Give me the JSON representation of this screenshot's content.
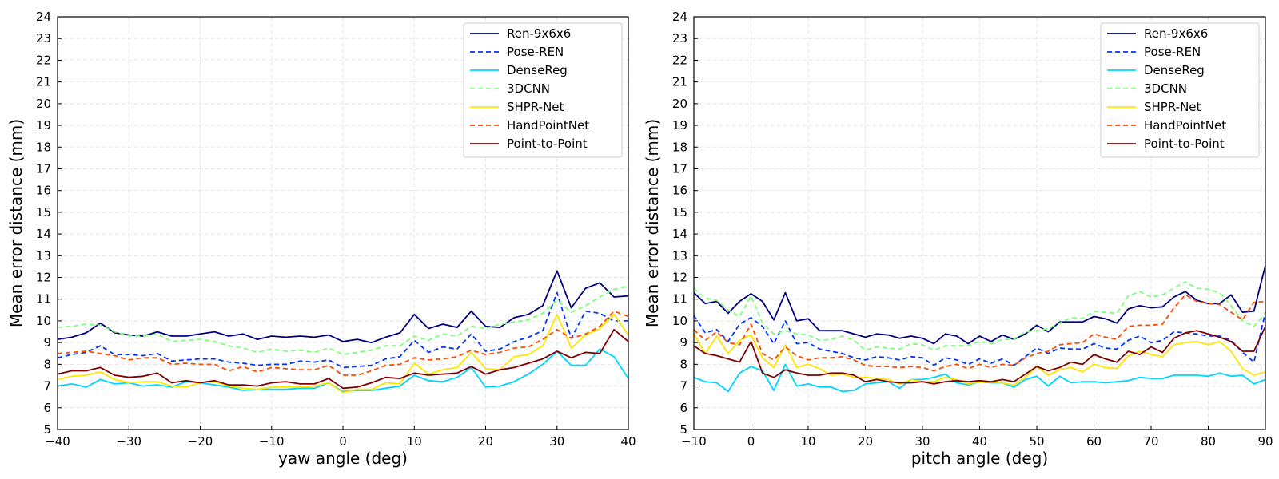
{
  "chart_data": [
    {
      "type": "line",
      "xlabel": "yaw angle (deg)",
      "ylabel": "Mean error distance (mm)",
      "xlim": [
        -40,
        40
      ],
      "ylim": [
        5,
        24
      ],
      "xticks": [
        -40,
        -30,
        -20,
        -10,
        0,
        10,
        20,
        30,
        40
      ],
      "xtick_labels": [
        "−40",
        "−30",
        "−20",
        "−10",
        "0",
        "10",
        "20",
        "30",
        "40"
      ],
      "yticks": [
        5,
        6,
        7,
        8,
        9,
        10,
        11,
        12,
        13,
        14,
        15,
        16,
        17,
        18,
        19,
        20,
        21,
        22,
        23,
        24
      ],
      "ytick_labels": [
        "5",
        "6",
        "7",
        "8",
        "9",
        "10",
        "11",
        "12",
        "13",
        "14",
        "15",
        "16",
        "17",
        "18",
        "19",
        "20",
        "21",
        "22",
        "23",
        "24"
      ],
      "grid": true,
      "legend_position": "top-right",
      "x": [
        -40,
        -38,
        -36,
        -34,
        -32,
        -30,
        -28,
        -26,
        -24,
        -22,
        -20,
        -18,
        -16,
        -14,
        -12,
        -10,
        -8,
        -6,
        -4,
        -2,
        0,
        2,
        4,
        6,
        8,
        10,
        12,
        14,
        16,
        18,
        20,
        22,
        24,
        26,
        28,
        30,
        32,
        34,
        36,
        38,
        40
      ],
      "series": [
        {
          "name": "Ren-9x6x6",
          "color": "#000080",
          "dash": "solid",
          "values": [
            9.15,
            9.25,
            9.45,
            9.9,
            9.45,
            9.35,
            9.3,
            9.5,
            9.3,
            9.3,
            9.4,
            9.5,
            9.3,
            9.4,
            9.15,
            9.3,
            9.25,
            9.3,
            9.25,
            9.35,
            9.05,
            9.15,
            9.0,
            9.25,
            9.45,
            10.3,
            9.65,
            9.85,
            9.7,
            10.45,
            9.75,
            9.7,
            10.15,
            10.3,
            10.7,
            12.3,
            10.6,
            11.5,
            11.75,
            11.1,
            11.15
          ]
        },
        {
          "name": "Pose-REN",
          "color": "#0033ff",
          "dash": "dashed",
          "values": [
            8.3,
            8.45,
            8.55,
            8.85,
            8.45,
            8.45,
            8.4,
            8.5,
            8.15,
            8.2,
            8.25,
            8.25,
            8.1,
            8.05,
            7.95,
            8.0,
            8.0,
            8.15,
            8.1,
            8.2,
            7.85,
            7.9,
            7.95,
            8.25,
            8.35,
            9.1,
            8.55,
            8.8,
            8.7,
            9.4,
            8.6,
            8.7,
            9.05,
            9.25,
            9.55,
            11.3,
            9.2,
            10.45,
            10.35,
            10.0,
            10.0
          ]
        },
        {
          "name": "DenseReg",
          "color": "#00d4ff",
          "dash": "solid",
          "values": [
            7.0,
            7.1,
            6.95,
            7.3,
            7.1,
            7.15,
            7.0,
            7.05,
            6.95,
            7.2,
            7.15,
            7.05,
            6.95,
            6.8,
            6.85,
            6.85,
            6.85,
            6.9,
            6.9,
            7.15,
            6.75,
            6.8,
            6.8,
            6.9,
            7.0,
            7.5,
            7.25,
            7.2,
            7.4,
            7.85,
            6.95,
            7.0,
            7.2,
            7.55,
            8.0,
            8.6,
            7.95,
            7.95,
            8.7,
            8.35,
            7.35
          ]
        },
        {
          "name": "3DCNN",
          "color": "#7cff79",
          "dash": "dashed",
          "values": [
            9.7,
            9.75,
            9.85,
            9.8,
            9.5,
            9.3,
            9.3,
            9.4,
            9.05,
            9.1,
            9.15,
            9.05,
            8.85,
            8.75,
            8.55,
            8.7,
            8.6,
            8.65,
            8.55,
            8.75,
            8.45,
            8.55,
            8.65,
            8.85,
            8.85,
            9.3,
            9.1,
            9.4,
            9.3,
            9.75,
            9.65,
            9.85,
            9.95,
            10.05,
            10.35,
            10.95,
            10.4,
            10.7,
            11.1,
            11.45,
            11.6
          ]
        },
        {
          "name": "SHPR-Net",
          "color": "#ffe600",
          "dash": "solid",
          "values": [
            7.3,
            7.45,
            7.5,
            7.65,
            7.3,
            7.15,
            7.2,
            7.2,
            7.0,
            6.95,
            7.15,
            7.2,
            7.0,
            6.9,
            6.85,
            6.95,
            6.95,
            6.95,
            7.0,
            7.15,
            6.7,
            6.85,
            6.85,
            7.15,
            7.1,
            8.05,
            7.55,
            7.75,
            7.85,
            8.55,
            7.8,
            7.75,
            8.35,
            8.45,
            8.85,
            10.3,
            8.75,
            9.35,
            9.65,
            10.3,
            9.35
          ]
        },
        {
          "name": "HandPointNet",
          "color": "#ff4a00",
          "dash": "dashed",
          "values": [
            8.5,
            8.55,
            8.6,
            8.5,
            8.4,
            8.2,
            8.3,
            8.3,
            8.0,
            8.05,
            8.0,
            8.0,
            7.7,
            7.9,
            7.65,
            7.85,
            7.8,
            7.75,
            7.75,
            7.95,
            7.5,
            7.5,
            7.7,
            7.95,
            8.0,
            8.3,
            8.2,
            8.25,
            8.35,
            8.65,
            8.45,
            8.55,
            8.75,
            8.8,
            9.15,
            9.6,
            9.2,
            9.4,
            9.75,
            10.45,
            10.2
          ]
        },
        {
          "name": "Point-to-Point",
          "color": "#800000",
          "dash": "solid",
          "values": [
            7.55,
            7.7,
            7.7,
            7.85,
            7.5,
            7.4,
            7.45,
            7.6,
            7.15,
            7.25,
            7.15,
            7.25,
            7.05,
            7.05,
            7.0,
            7.15,
            7.2,
            7.1,
            7.1,
            7.35,
            6.9,
            6.95,
            7.15,
            7.4,
            7.35,
            7.6,
            7.5,
            7.55,
            7.6,
            7.9,
            7.55,
            7.75,
            7.85,
            8.05,
            8.25,
            8.6,
            8.3,
            8.55,
            8.5,
            9.6,
            9.05
          ]
        }
      ]
    },
    {
      "type": "line",
      "xlabel": "pitch angle (deg)",
      "ylabel": "Mean error distance (mm)",
      "xlim": [
        -10,
        90
      ],
      "ylim": [
        5,
        24
      ],
      "xticks": [
        -10,
        0,
        10,
        20,
        30,
        40,
        50,
        60,
        70,
        80,
        90
      ],
      "xtick_labels": [
        "−10",
        "0",
        "10",
        "20",
        "30",
        "40",
        "50",
        "60",
        "70",
        "80",
        "90"
      ],
      "yticks": [
        5,
        6,
        7,
        8,
        9,
        10,
        11,
        12,
        13,
        14,
        15,
        16,
        17,
        18,
        19,
        20,
        21,
        22,
        23,
        24
      ],
      "ytick_labels": [
        "5",
        "6",
        "7",
        "8",
        "9",
        "10",
        "11",
        "12",
        "13",
        "14",
        "15",
        "16",
        "17",
        "18",
        "19",
        "20",
        "21",
        "22",
        "23",
        "24"
      ],
      "grid": true,
      "legend_position": "top-right",
      "x": [
        -10,
        -8,
        -6,
        -4,
        -2,
        0,
        2,
        4,
        6,
        8,
        10,
        12,
        14,
        16,
        18,
        20,
        22,
        24,
        26,
        28,
        30,
        32,
        34,
        36,
        38,
        40,
        42,
        44,
        46,
        48,
        50,
        52,
        54,
        56,
        58,
        60,
        62,
        64,
        66,
        68,
        70,
        72,
        74,
        76,
        78,
        80,
        82,
        84,
        86,
        88,
        90
      ],
      "series": [
        {
          "name": "Ren-9x6x6",
          "color": "#000080",
          "dash": "solid",
          "values": [
            11.3,
            10.8,
            10.9,
            10.35,
            10.9,
            11.25,
            10.9,
            10.05,
            11.3,
            10.0,
            10.1,
            9.55,
            9.55,
            9.55,
            9.4,
            9.25,
            9.4,
            9.35,
            9.2,
            9.3,
            9.2,
            8.95,
            9.4,
            9.3,
            8.95,
            9.3,
            9.05,
            9.35,
            9.15,
            9.4,
            9.8,
            9.5,
            9.95,
            9.95,
            9.95,
            10.2,
            10.1,
            9.9,
            10.55,
            10.7,
            10.6,
            10.65,
            11.1,
            11.35,
            10.95,
            10.8,
            10.8,
            11.2,
            10.4,
            10.45,
            12.55
          ]
        },
        {
          "name": "Pose-REN",
          "color": "#0033ff",
          "dash": "dashed",
          "values": [
            10.25,
            9.45,
            9.6,
            9.05,
            9.85,
            10.15,
            9.75,
            8.95,
            10.0,
            8.95,
            9.0,
            8.7,
            8.6,
            8.5,
            8.3,
            8.2,
            8.35,
            8.3,
            8.2,
            8.35,
            8.3,
            7.95,
            8.3,
            8.2,
            8.0,
            8.25,
            8.05,
            8.25,
            7.95,
            8.35,
            8.75,
            8.5,
            8.75,
            8.7,
            8.7,
            8.95,
            8.75,
            8.7,
            9.1,
            9.3,
            9.0,
            9.1,
            9.5,
            9.45,
            9.4,
            9.3,
            9.3,
            9.1,
            8.55,
            8.1,
            10.4
          ]
        },
        {
          "name": "DenseReg",
          "color": "#00d4ff",
          "dash": "solid",
          "values": [
            7.4,
            7.2,
            7.15,
            6.75,
            7.6,
            7.9,
            7.7,
            6.8,
            8.0,
            7.0,
            7.1,
            6.95,
            6.95,
            6.75,
            6.8,
            7.1,
            7.15,
            7.2,
            6.9,
            7.3,
            7.3,
            7.4,
            7.55,
            7.15,
            7.05,
            7.2,
            7.15,
            7.15,
            6.95,
            7.3,
            7.45,
            7.0,
            7.45,
            7.15,
            7.2,
            7.2,
            7.15,
            7.2,
            7.25,
            7.4,
            7.35,
            7.35,
            7.5,
            7.5,
            7.5,
            7.45,
            7.6,
            7.45,
            7.5,
            7.1,
            7.3
          ]
        },
        {
          "name": "3DCNN",
          "color": "#7cff79",
          "dash": "dashed",
          "values": [
            11.5,
            11.05,
            10.95,
            10.5,
            10.2,
            11.15,
            9.9,
            9.4,
            9.55,
            9.4,
            9.35,
            9.1,
            9.15,
            9.3,
            9.1,
            8.65,
            8.8,
            8.75,
            8.7,
            8.95,
            8.9,
            8.65,
            8.85,
            8.85,
            8.85,
            9.05,
            8.95,
            9.15,
            9.15,
            9.5,
            9.55,
            9.65,
            9.9,
            10.15,
            10.1,
            10.45,
            10.4,
            10.35,
            11.15,
            11.35,
            11.1,
            11.2,
            11.5,
            11.8,
            11.5,
            11.45,
            11.3,
            10.7,
            10.0,
            9.75,
            10.35
          ]
        },
        {
          "name": "SHPR-Net",
          "color": "#ffe600",
          "dash": "solid",
          "values": [
            9.4,
            8.5,
            9.3,
            8.5,
            9.1,
            9.35,
            8.3,
            7.85,
            8.9,
            7.85,
            8.0,
            7.8,
            7.5,
            7.55,
            7.4,
            7.4,
            7.35,
            7.3,
            7.1,
            7.3,
            7.2,
            7.2,
            7.4,
            7.3,
            7.1,
            7.2,
            7.2,
            7.15,
            7.05,
            7.4,
            7.9,
            7.5,
            7.75,
            7.85,
            7.65,
            8.0,
            7.85,
            7.8,
            8.4,
            8.6,
            8.45,
            8.35,
            8.9,
            9.0,
            9.05,
            8.9,
            9.05,
            8.6,
            7.8,
            7.5,
            7.65
          ]
        },
        {
          "name": "HandPointNet",
          "color": "#ff4a00",
          "dash": "dashed",
          "values": [
            9.6,
            9.1,
            9.5,
            9.0,
            8.9,
            9.85,
            8.5,
            8.2,
            8.8,
            8.4,
            8.2,
            8.3,
            8.3,
            8.35,
            8.2,
            7.95,
            7.9,
            7.9,
            7.85,
            7.9,
            7.85,
            7.7,
            7.9,
            8.0,
            7.8,
            8.0,
            7.85,
            8.0,
            7.95,
            8.3,
            8.5,
            8.6,
            8.9,
            8.95,
            9.0,
            9.4,
            9.25,
            9.15,
            9.75,
            9.8,
            9.8,
            9.85,
            10.6,
            11.2,
            10.9,
            10.8,
            10.75,
            10.4,
            10.05,
            10.85,
            10.9
          ]
        },
        {
          "name": "Point-to-Point",
          "color": "#800000",
          "dash": "solid",
          "values": [
            8.85,
            8.5,
            8.4,
            8.25,
            8.1,
            9.05,
            7.6,
            7.4,
            7.75,
            7.6,
            7.5,
            7.5,
            7.6,
            7.6,
            7.5,
            7.2,
            7.3,
            7.2,
            7.15,
            7.15,
            7.2,
            7.1,
            7.2,
            7.25,
            7.2,
            7.25,
            7.2,
            7.3,
            7.2,
            7.55,
            7.9,
            7.7,
            7.85,
            8.1,
            8.0,
            8.45,
            8.25,
            8.1,
            8.6,
            8.45,
            8.8,
            8.55,
            9.2,
            9.45,
            9.55,
            9.4,
            9.25,
            9.05,
            8.6,
            8.6,
            9.75
          ]
        }
      ]
    }
  ]
}
